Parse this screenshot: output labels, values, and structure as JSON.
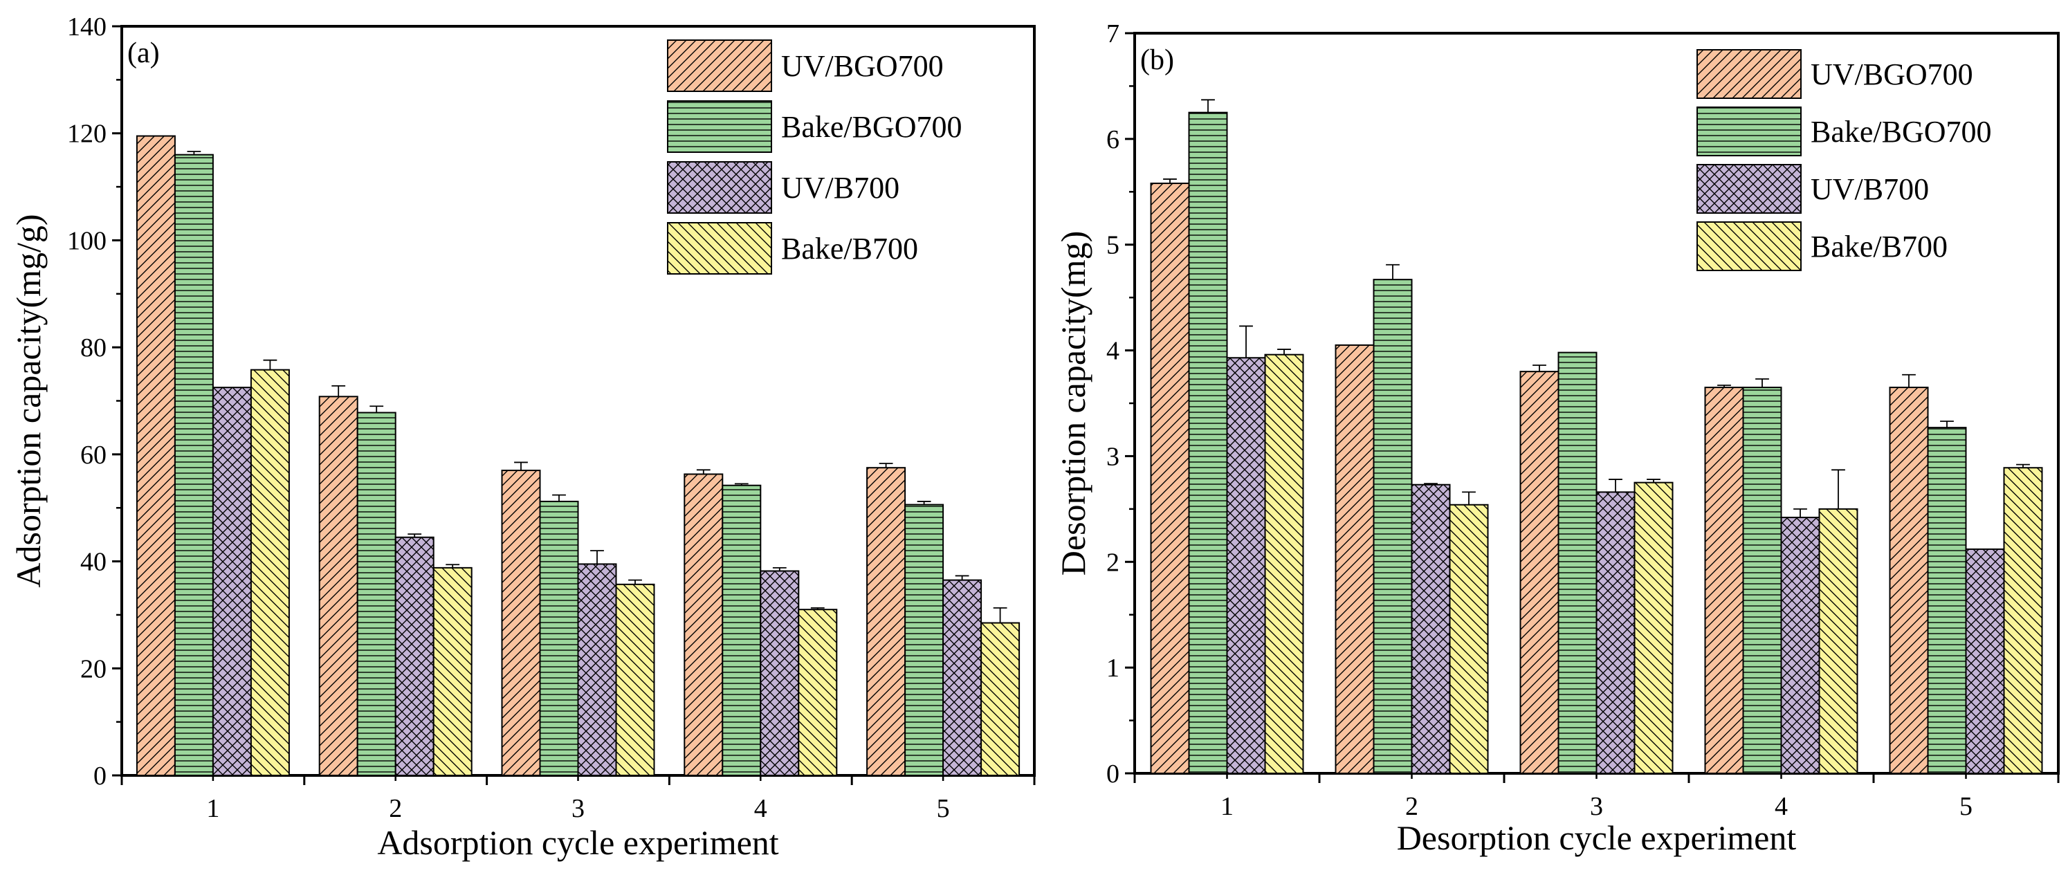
{
  "chart_data": [
    {
      "type": "bar",
      "panel_label": "(a)",
      "title": "",
      "xlabel": "Adsorption cycle experiment",
      "ylabel": "Adsorption capacity(mg/g)",
      "ylim": [
        0,
        140
      ],
      "yticks": [
        0,
        20,
        40,
        60,
        80,
        100,
        120,
        140
      ],
      "categories": [
        "1",
        "2",
        "3",
        "4",
        "5"
      ],
      "legend_position": "top-right",
      "series": [
        {
          "name": "UV/BGO700",
          "values": [
            119.5,
            70.8,
            57.0,
            56.3,
            57.5
          ],
          "errors": [
            0,
            2.0,
            1.5,
            0.8,
            0.8
          ]
        },
        {
          "name": "Bake/BGO700",
          "values": [
            116.0,
            67.8,
            51.2,
            54.2,
            50.6
          ],
          "errors": [
            0.6,
            1.2,
            1.2,
            0.3,
            0.6
          ]
        },
        {
          "name": "UV/B700",
          "values": [
            72.5,
            44.5,
            39.5,
            38.2,
            36.5
          ],
          "errors": [
            0,
            0.6,
            2.5,
            0.6,
            0.8
          ]
        },
        {
          "name": "Bake/B700",
          "values": [
            75.8,
            38.8,
            35.7,
            31.0,
            28.5
          ],
          "errors": [
            1.8,
            0.6,
            0.8,
            0.3,
            2.8
          ]
        }
      ]
    },
    {
      "type": "bar",
      "panel_label": "(b)",
      "title": "",
      "xlabel": "Desorption cycle experiment",
      "ylabel": "Desorption capacity(mg)",
      "ylim": [
        0,
        7
      ],
      "yticks": [
        0,
        1,
        2,
        3,
        4,
        5,
        6,
        7
      ],
      "categories": [
        "1",
        "2",
        "3",
        "4",
        "5"
      ],
      "legend_position": "top-right",
      "series": [
        {
          "name": "UV/BGO700",
          "values": [
            5.58,
            4.05,
            3.8,
            3.65,
            3.65
          ],
          "errors": [
            0.04,
            0,
            0.06,
            0.02,
            0.12
          ]
        },
        {
          "name": "Bake/BGO700",
          "values": [
            6.25,
            4.67,
            3.98,
            3.65,
            3.27
          ],
          "errors": [
            0.12,
            0.14,
            0,
            0.08,
            0.06
          ]
        },
        {
          "name": "UV/B700",
          "values": [
            3.93,
            2.73,
            2.66,
            2.42,
            2.12
          ],
          "errors": [
            0.3,
            0.01,
            0.12,
            0.08,
            0
          ]
        },
        {
          "name": "Bake/B700",
          "values": [
            3.96,
            2.54,
            2.75,
            2.5,
            2.89
          ],
          "errors": [
            0.05,
            0.12,
            0.03,
            0.37,
            0.03
          ]
        }
      ]
    }
  ],
  "colors": {
    "UV/BGO700": "#f9c29e",
    "Bake/BGO700": "#9cd69c",
    "UV/B700": "#c4b4d6",
    "Bake/B700": "#fbf59a"
  },
  "patterns": {
    "UV/BGO700": "diagonal-right",
    "Bake/BGO700": "horizontal",
    "UV/B700": "crosshatch",
    "Bake/B700": "diagonal-left"
  }
}
